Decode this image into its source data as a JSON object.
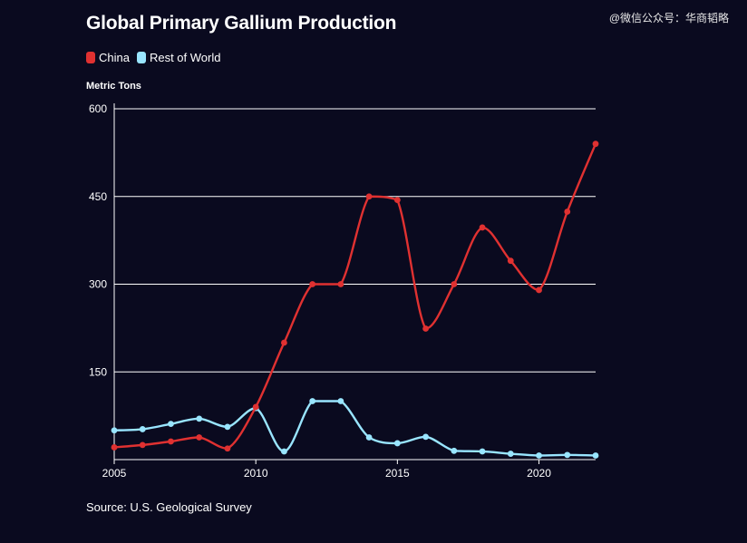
{
  "header": {
    "title": "Global Primary Gallium Production",
    "watermark": "@微信公众号：华商韬略"
  },
  "footer": {
    "source": "Source: U.S. Geological Survey"
  },
  "colors": {
    "background": "#0a0a1f",
    "china": "#e03131",
    "rest_of_world": "#99e5ff",
    "grid": "#ffffff"
  },
  "chart_data": {
    "type": "line",
    "title": "Global Primary Gallium Production",
    "ylabel": "Metric Tons",
    "xlabel": "",
    "x": [
      2005,
      2006,
      2007,
      2008,
      2009,
      2010,
      2011,
      2012,
      2013,
      2014,
      2015,
      2016,
      2017,
      2018,
      2019,
      2020,
      2021,
      2022
    ],
    "series": [
      {
        "name": "China",
        "color": "#e03131",
        "values": [
          21,
          25,
          31,
          38,
          19,
          90,
          200,
          300,
          300,
          450,
          444,
          224,
          300,
          397,
          340,
          290,
          424,
          540
        ]
      },
      {
        "name": "Rest of World",
        "color": "#99e5ff",
        "values": [
          50,
          52,
          61,
          70,
          56,
          88,
          14,
          100,
          100,
          38,
          28,
          39,
          15,
          14,
          10,
          7,
          8,
          7
        ]
      }
    ],
    "xlim": [
      2005,
      2022
    ],
    "ylim": [
      0,
      600
    ],
    "xticks": [
      2005,
      2010,
      2015,
      2020
    ],
    "yticks": [
      150,
      300,
      450,
      600
    ],
    "grid": "horizontal",
    "legend": "top-left",
    "smooth": true
  }
}
